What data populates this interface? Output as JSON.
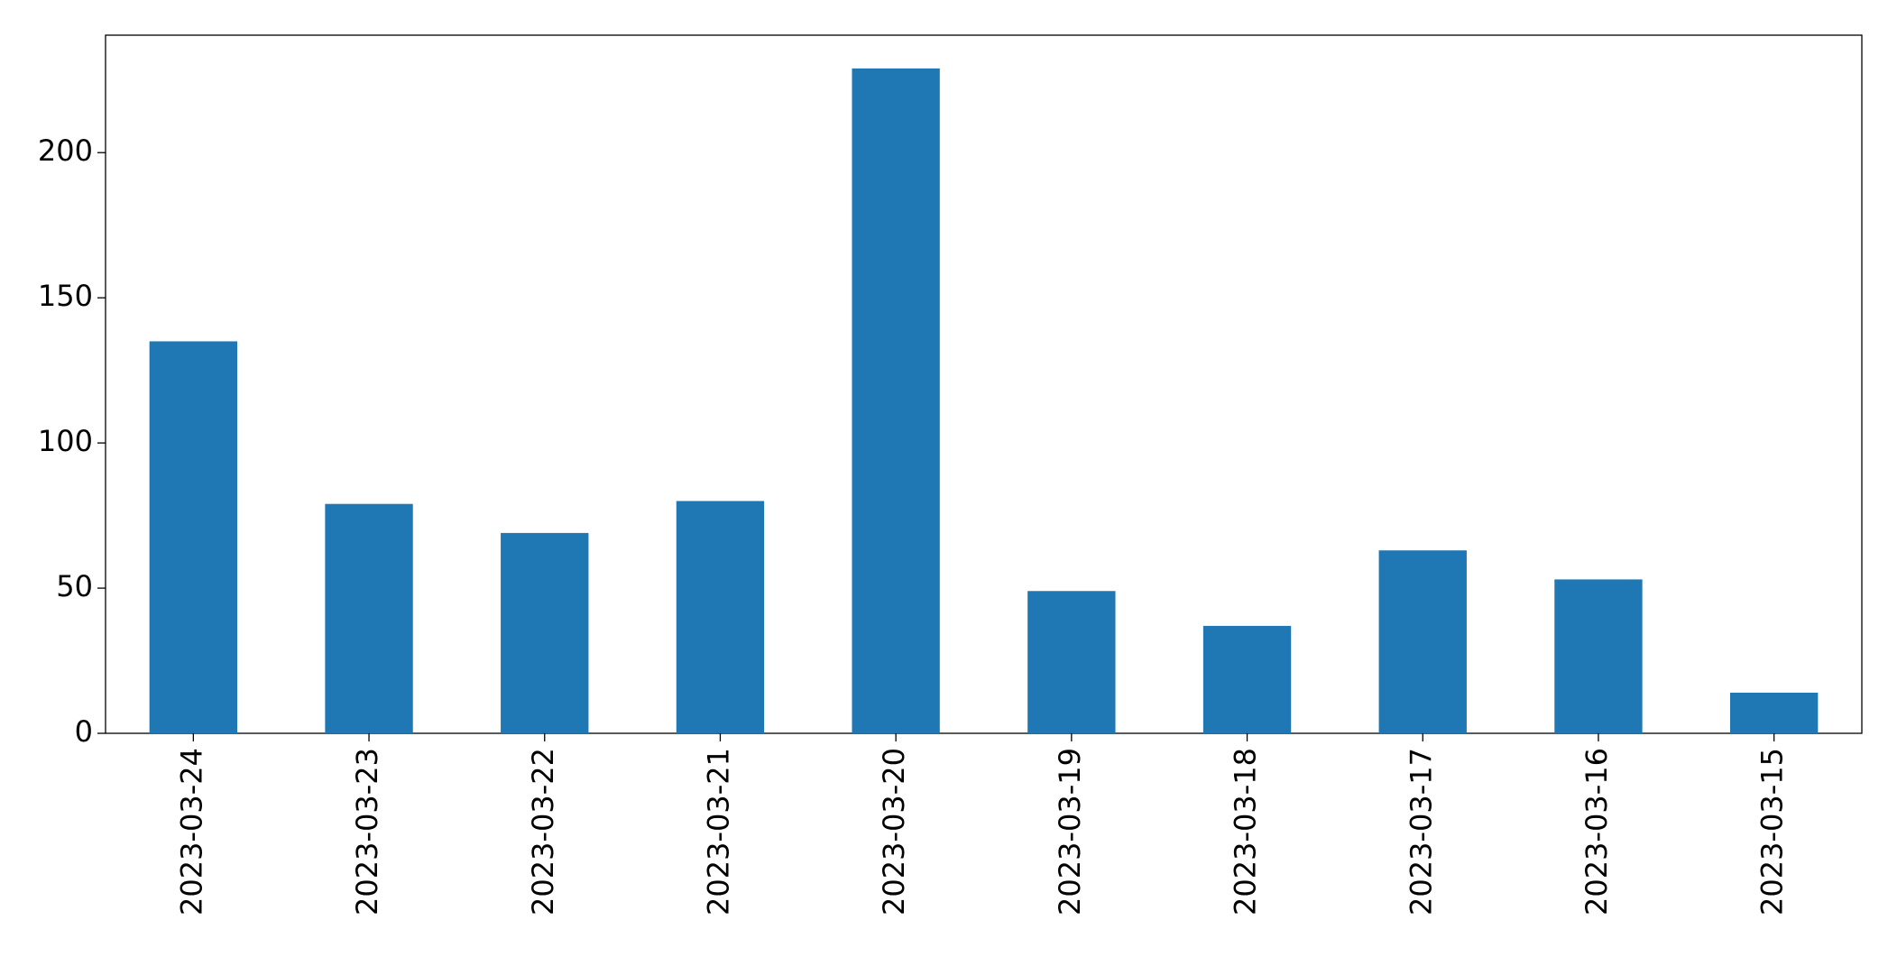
{
  "chart_data": {
    "type": "bar",
    "categories": [
      "2023-03-24",
      "2023-03-23",
      "2023-03-22",
      "2023-03-21",
      "2023-03-20",
      "2023-03-19",
      "2023-03-18",
      "2023-03-17",
      "2023-03-16",
      "2023-03-15"
    ],
    "values": [
      135,
      79,
      69,
      80,
      229,
      49,
      37,
      63,
      53,
      14
    ],
    "color": "#1f77b4",
    "ylim": [
      0,
      240.45
    ],
    "yticks": [
      0,
      50,
      100,
      150,
      200
    ],
    "grid": false
  }
}
